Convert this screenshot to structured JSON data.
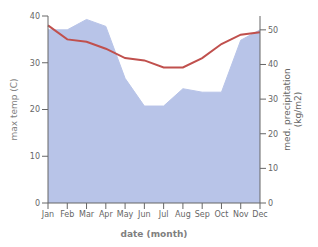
{
  "chart_data": {
    "type": "line",
    "categories": [
      "Jan",
      "Feb",
      "Mar",
      "Apr",
      "May",
      "Jun",
      "Jul",
      "Aug",
      "Sep",
      "Oct",
      "Nov",
      "Dec"
    ],
    "xlabel": "date (month)",
    "ylabel": "max temp (C)",
    "y2label": "med. precipitation\n(kg/m2)",
    "ylim": [
      0,
      40
    ],
    "yticks": [
      0,
      10,
      20,
      30,
      40
    ],
    "y2lim": [
      0,
      54
    ],
    "y2ticks": [
      0,
      10,
      20,
      30,
      40,
      50
    ],
    "series": [
      {
        "type": "area",
        "axis": "y2",
        "color": "#b8c4e8",
        "values": [
          50,
          50,
          53,
          51,
          36,
          28,
          28,
          33,
          32,
          32,
          47,
          50
        ]
      },
      {
        "type": "line",
        "color": "#c0504d",
        "values": [
          38,
          35,
          34.5,
          33,
          31,
          30.5,
          29,
          29,
          31,
          34,
          36,
          36.5
        ]
      }
    ]
  }
}
